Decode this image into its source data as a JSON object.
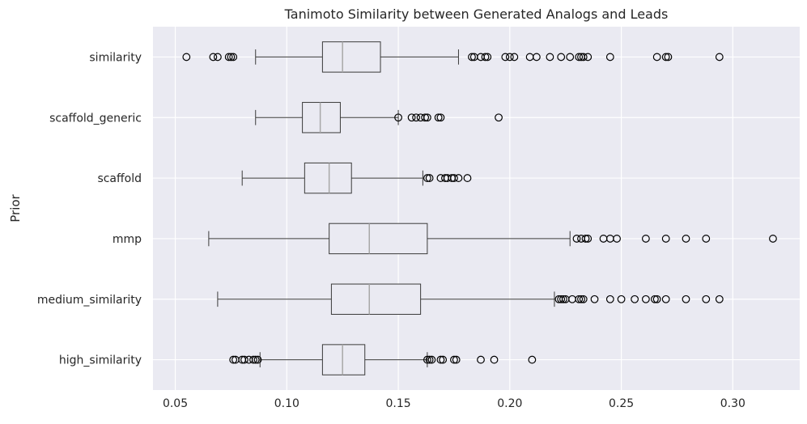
{
  "chart_data": {
    "type": "boxplot",
    "orientation": "horizontal",
    "title": "Tanimoto Similarity between Generated Analogs and Leads",
    "xlabel": "",
    "ylabel": "Prior",
    "xlim": [
      0.04,
      0.33
    ],
    "x_ticks": [
      0.05,
      0.1,
      0.15,
      0.2,
      0.25,
      0.3
    ],
    "x_tick_labels": [
      "0.05",
      "0.10",
      "0.15",
      "0.20",
      "0.25",
      "0.30"
    ],
    "grid": true,
    "categories": [
      "similarity",
      "scaffold_generic",
      "scaffold",
      "mmp",
      "medium_similarity",
      "high_similarity"
    ],
    "boxes": [
      {
        "category": "similarity",
        "whisker_low": 0.086,
        "q1": 0.116,
        "median": 0.125,
        "q3": 0.142,
        "whisker_high": 0.177,
        "outliers": [
          0.055,
          0.067,
          0.069,
          0.074,
          0.075,
          0.076,
          0.183,
          0.184,
          0.187,
          0.189,
          0.19,
          0.198,
          0.2,
          0.202,
          0.209,
          0.212,
          0.218,
          0.223,
          0.227,
          0.231,
          0.232,
          0.233,
          0.235,
          0.245,
          0.266,
          0.27,
          0.271,
          0.294
        ]
      },
      {
        "category": "scaffold_generic",
        "whisker_low": 0.086,
        "q1": 0.107,
        "median": 0.115,
        "q3": 0.124,
        "whisker_high": 0.15,
        "outliers": [
          0.15,
          0.156,
          0.158,
          0.16,
          0.162,
          0.163,
          0.168,
          0.169,
          0.195
        ]
      },
      {
        "category": "scaffold",
        "whisker_low": 0.08,
        "q1": 0.108,
        "median": 0.119,
        "q3": 0.129,
        "whisker_high": 0.161,
        "outliers": [
          0.163,
          0.164,
          0.169,
          0.171,
          0.172,
          0.174,
          0.175,
          0.177,
          0.181
        ]
      },
      {
        "category": "mmp",
        "whisker_low": 0.065,
        "q1": 0.119,
        "median": 0.137,
        "q3": 0.163,
        "whisker_high": 0.227,
        "outliers": [
          0.23,
          0.232,
          0.234,
          0.235,
          0.242,
          0.245,
          0.248,
          0.261,
          0.27,
          0.279,
          0.288,
          0.318
        ]
      },
      {
        "category": "medium_similarity",
        "whisker_low": 0.069,
        "q1": 0.12,
        "median": 0.137,
        "q3": 0.16,
        "whisker_high": 0.22,
        "outliers": [
          0.222,
          0.223,
          0.224,
          0.225,
          0.228,
          0.231,
          0.232,
          0.233,
          0.238,
          0.245,
          0.25,
          0.256,
          0.261,
          0.265,
          0.266,
          0.27,
          0.279,
          0.288,
          0.294
        ]
      },
      {
        "category": "high_similarity",
        "whisker_low": 0.088,
        "q1": 0.116,
        "median": 0.125,
        "q3": 0.135,
        "whisker_high": 0.163,
        "outliers": [
          0.076,
          0.077,
          0.08,
          0.081,
          0.083,
          0.085,
          0.086,
          0.087,
          0.163,
          0.164,
          0.165,
          0.169,
          0.17,
          0.175,
          0.176,
          0.187,
          0.193,
          0.21
        ]
      }
    ],
    "colors": {
      "background": "#EAEAF2",
      "grid": "#FFFFFF",
      "box_edge": "#3A3A3A",
      "median": "#A8A8A8",
      "box_fill": "#EAEAF2",
      "outlier_edge": "#000000",
      "text": "#262626"
    }
  }
}
